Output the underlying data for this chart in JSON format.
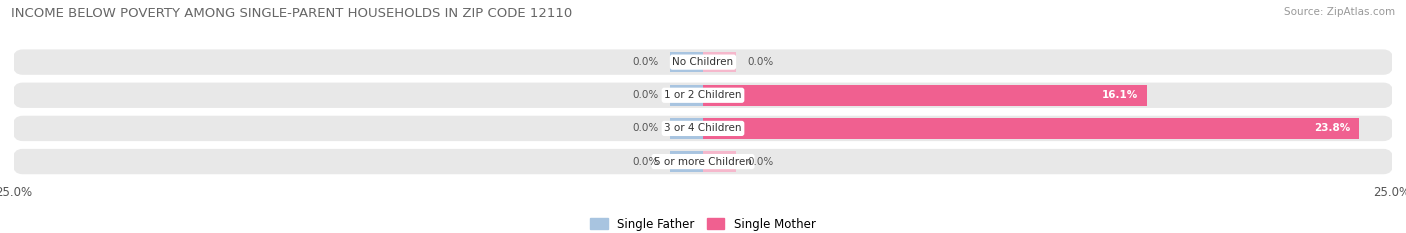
{
  "title": "INCOME BELOW POVERTY AMONG SINGLE-PARENT HOUSEHOLDS IN ZIP CODE 12110",
  "source": "Source: ZipAtlas.com",
  "categories": [
    "No Children",
    "1 or 2 Children",
    "3 or 4 Children",
    "5 or more Children"
  ],
  "single_father": [
    0.0,
    0.0,
    0.0,
    0.0
  ],
  "single_mother": [
    0.0,
    16.1,
    23.8,
    0.0
  ],
  "xlim": 25.0,
  "father_color": "#a8c4e0",
  "mother_color": "#f06090",
  "mother_color_light": "#f5b8cc",
  "row_bg_color": "#e8e8e8",
  "title_fontsize": 9.5,
  "source_fontsize": 7.5,
  "tick_fontsize": 8.5,
  "label_fontsize": 7.5,
  "value_fontsize": 7.5,
  "legend_fontsize": 8.5,
  "stub_size": 1.2
}
